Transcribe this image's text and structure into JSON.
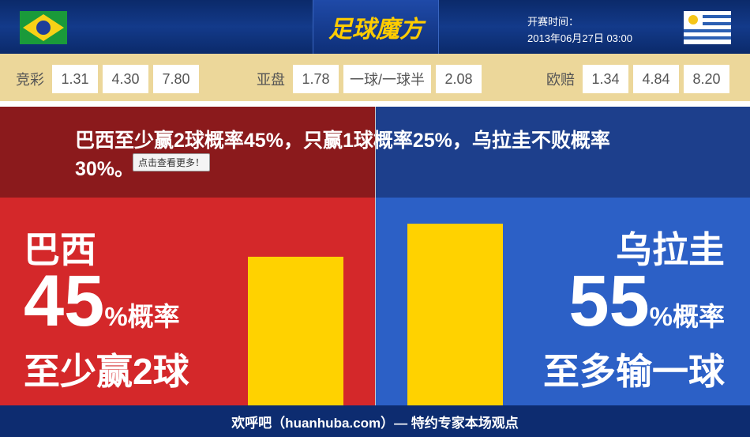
{
  "header": {
    "logo": "足球魔方",
    "kickoff_label": "开赛时间：",
    "kickoff_time": "2013年06月27日 03:00"
  },
  "odds": [
    {
      "label": "竞彩",
      "values": [
        "1.31",
        "4.30",
        "7.80"
      ]
    },
    {
      "label": "亚盘",
      "values": [
        "1.78",
        "一球/一球半",
        "2.08"
      ]
    },
    {
      "label": "欧赔",
      "values": [
        "1.34",
        "4.84",
        "8.20"
      ]
    }
  ],
  "headline": "巴西至少赢2球概率45%，只赢1球概率25%，乌拉圭不败概率30%。",
  "tooltip": "点击查看更多！",
  "teams": [
    {
      "name": "巴西",
      "percent": 45,
      "percent_suffix": "%概率",
      "outcome": "至少赢2球"
    },
    {
      "name": "乌拉圭",
      "percent": 55,
      "percent_suffix": "%概率",
      "outcome": "至多输一球"
    }
  ],
  "footer": "欢呼吧（huanhuba.com）— 特约专家本场观点"
}
